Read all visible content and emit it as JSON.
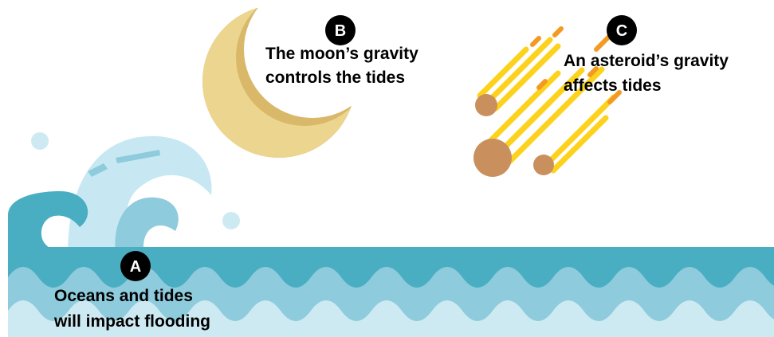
{
  "options": [
    {
      "letter": "A",
      "lines": [
        "Oceans and tides",
        "will impact flooding"
      ]
    },
    {
      "letter": "B",
      "lines": [
        "The moon’s gravity",
        "controls the tides"
      ]
    },
    {
      "letter": "C",
      "lines": [
        "An asteroid’s gravity",
        "affects tides"
      ]
    }
  ]
}
